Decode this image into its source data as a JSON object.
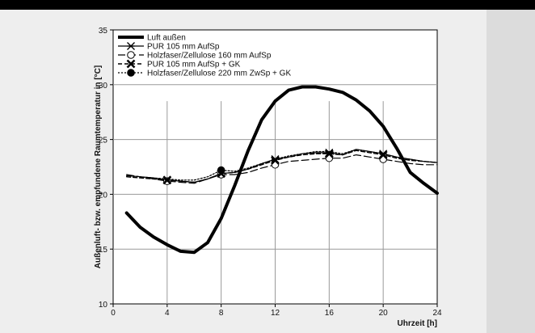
{
  "chart_data": {
    "type": "line",
    "xlabel": "Uhrzeit [h]",
    "ylabel": "Außenluft- bzw. empfundene Raumtemperatur in [°C]",
    "xlim": [
      0,
      24
    ],
    "ylim": [
      10,
      35
    ],
    "xticks": [
      0,
      4,
      8,
      12,
      16,
      20,
      24
    ],
    "yticks": [
      10,
      15,
      20,
      25,
      30,
      35
    ],
    "x_major_grid": [
      4,
      8,
      12,
      16,
      20
    ],
    "legend_position": "top-left",
    "series": [
      {
        "name": "Luft außen",
        "style": "thick-solid",
        "color": "#000000",
        "x": [
          1,
          2,
          3,
          4,
          5,
          6,
          7,
          8,
          9,
          10,
          11,
          12,
          13,
          14,
          15,
          16,
          17,
          18,
          19,
          20,
          21,
          22,
          23,
          24
        ],
        "y": [
          18.3,
          17.0,
          16.1,
          15.4,
          14.8,
          14.7,
          15.6,
          17.8,
          20.8,
          24.0,
          26.8,
          28.5,
          29.5,
          29.8,
          29.8,
          29.6,
          29.3,
          28.6,
          27.6,
          26.2,
          24.2,
          22.0,
          21.0,
          20.1
        ]
      },
      {
        "name": "PUR 105 mm AufSp",
        "style": "solid",
        "marker": "star",
        "color": "#000000",
        "marker_x": [
          4,
          8,
          12,
          16,
          20
        ],
        "x": [
          1,
          2,
          3,
          4,
          5,
          6,
          7,
          8,
          9,
          10,
          11,
          12,
          13,
          14,
          15,
          16,
          17,
          18,
          19,
          20,
          21,
          22,
          23,
          24
        ],
        "y": [
          21.7,
          21.6,
          21.5,
          21.3,
          21.2,
          21.1,
          21.4,
          21.9,
          22.0,
          22.3,
          22.8,
          23.2,
          23.4,
          23.7,
          23.8,
          23.8,
          23.6,
          24.1,
          23.9,
          23.7,
          23.4,
          23.2,
          23.0,
          22.9
        ]
      },
      {
        "name": "Holzfaser/Zellulose 160 mm AufSp",
        "style": "long-dash",
        "marker": "open-circle",
        "color": "#000000",
        "marker_x": [
          4,
          8,
          12,
          16,
          20
        ],
        "x": [
          1,
          2,
          3,
          4,
          5,
          6,
          7,
          8,
          9,
          10,
          11,
          12,
          13,
          14,
          15,
          16,
          17,
          18,
          19,
          20,
          21,
          22,
          23,
          24
        ],
        "y": [
          21.8,
          21.6,
          21.4,
          21.2,
          21.1,
          21.0,
          21.4,
          21.8,
          21.8,
          22.0,
          22.4,
          22.7,
          23.0,
          23.1,
          23.2,
          23.3,
          23.3,
          23.6,
          23.4,
          23.2,
          23.0,
          22.8,
          22.7,
          22.7
        ]
      },
      {
        "name": "PUR 105 mm AufSp + GK",
        "style": "dash",
        "marker": "bold-x",
        "color": "#000000",
        "marker_x": [
          4,
          8,
          12,
          16,
          20
        ],
        "x": [
          1,
          2,
          3,
          4,
          5,
          6,
          7,
          8,
          9,
          10,
          11,
          12,
          13,
          14,
          15,
          16,
          17,
          18,
          19,
          20,
          21,
          22,
          23,
          24
        ],
        "y": [
          21.6,
          21.5,
          21.4,
          21.3,
          21.2,
          21.1,
          21.4,
          21.9,
          22.0,
          22.3,
          22.7,
          23.1,
          23.4,
          23.6,
          23.7,
          23.7,
          23.6,
          24.0,
          23.8,
          23.6,
          23.3,
          23.1,
          23.0,
          22.9
        ]
      },
      {
        "name": "Holzfaser/Zellulose 220 mm ZwSp + GK",
        "style": "dotted",
        "marker": "filled-circle",
        "color": "#000000",
        "marker_x": [
          8
        ],
        "x": [
          1,
          2,
          3,
          4,
          5,
          6,
          7,
          8,
          9,
          10,
          11,
          12,
          13,
          14,
          15,
          16,
          17,
          18,
          19,
          20,
          21,
          22,
          23,
          24
        ],
        "y": [
          21.7,
          21.6,
          21.5,
          21.4,
          21.3,
          21.3,
          21.6,
          22.2,
          22.1,
          22.4,
          22.8,
          23.2,
          23.5,
          23.7,
          23.9,
          23.9,
          23.7,
          24.1,
          23.9,
          23.7,
          23.4,
          23.2,
          23.0,
          22.9
        ]
      }
    ]
  }
}
